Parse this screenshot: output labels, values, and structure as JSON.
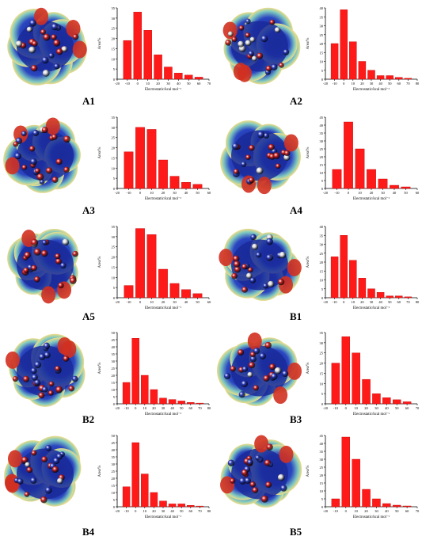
{
  "colors": {
    "bar": "#ff1a1a",
    "bar_edge": "#c00000",
    "axis": "#000000",
    "surface_blue": "#1a2a9a",
    "surface_red": "#d23020",
    "surface_yellow": "#e8dc8a",
    "atom_red": "#c81e1e",
    "atom_blue": "#2a3ab8",
    "atom_white": "#dcdcdc"
  },
  "panels": [
    {
      "label": "A1"
    },
    {
      "label": "A2"
    },
    {
      "label": "A3"
    },
    {
      "label": "A4"
    },
    {
      "label": "A5"
    },
    {
      "label": "B1"
    },
    {
      "label": "B2"
    },
    {
      "label": "B3"
    },
    {
      "label": "B4"
    },
    {
      "label": "B5"
    }
  ],
  "chart_data": [
    {
      "panel": "A1",
      "type": "bar",
      "xlabel": "Electrostatic/kcal mol⁻¹",
      "ylabel": "Area/%",
      "x": [
        -10,
        0,
        10,
        20,
        30,
        40,
        50,
        60
      ],
      "values": [
        19,
        33,
        24,
        12,
        6,
        3,
        2,
        1
      ],
      "xlim": [
        -20,
        70
      ],
      "ylim": [
        0,
        35
      ],
      "xticks": [
        -20,
        -10,
        0,
        10,
        20,
        30,
        40,
        50,
        60,
        70
      ],
      "yticks": [
        0,
        5,
        10,
        15,
        20,
        25,
        30,
        35
      ]
    },
    {
      "panel": "A2",
      "type": "bar",
      "xlabel": "Electrostatic/kcal mol⁻¹",
      "ylabel": "Area/%",
      "x": [
        -10,
        0,
        10,
        20,
        30,
        40,
        50,
        60,
        70
      ],
      "values": [
        20,
        39,
        21,
        10,
        5,
        2,
        2,
        1,
        0.5
      ],
      "xlim": [
        -20,
        80
      ],
      "ylim": [
        0,
        40
      ],
      "xticks": [
        -20,
        -10,
        0,
        10,
        20,
        30,
        40,
        50,
        60,
        70,
        80
      ],
      "yticks": [
        0,
        5,
        10,
        15,
        20,
        25,
        30,
        35,
        40
      ]
    },
    {
      "panel": "A3",
      "type": "bar",
      "xlabel": "Electrostatic/kcal mol⁻¹",
      "ylabel": "Area/%",
      "x": [
        -10,
        0,
        10,
        20,
        30,
        40,
        50
      ],
      "values": [
        18,
        30,
        29,
        14,
        6,
        3,
        2
      ],
      "xlim": [
        -20,
        60
      ],
      "ylim": [
        0,
        35
      ],
      "xticks": [
        -20,
        -10,
        0,
        10,
        20,
        30,
        40,
        50,
        60
      ],
      "yticks": [
        0,
        5,
        10,
        15,
        20,
        25,
        30,
        35
      ]
    },
    {
      "panel": "A4",
      "type": "bar",
      "xlabel": "Electrostatic/kcal mol⁻¹",
      "ylabel": "Area/%",
      "x": [
        -10,
        0,
        10,
        20,
        30,
        40,
        50
      ],
      "values": [
        12,
        42,
        25,
        12,
        6,
        2,
        1
      ],
      "xlim": [
        -20,
        60
      ],
      "ylim": [
        0,
        45
      ],
      "xticks": [
        -20,
        -10,
        0,
        10,
        20,
        30,
        40,
        50,
        60
      ],
      "yticks": [
        0,
        5,
        10,
        15,
        20,
        25,
        30,
        35,
        40,
        45
      ]
    },
    {
      "panel": "A5",
      "type": "bar",
      "xlabel": "Electrostatic/kcal mol⁻¹",
      "ylabel": "Area/%",
      "x": [
        -10,
        0,
        10,
        20,
        30,
        40,
        50
      ],
      "values": [
        6,
        34,
        31,
        14,
        7,
        4,
        2
      ],
      "xlim": [
        -20,
        60
      ],
      "ylim": [
        0,
        35
      ],
      "xticks": [
        -20,
        -10,
        0,
        10,
        20,
        30,
        40,
        50,
        60
      ],
      "yticks": [
        0,
        5,
        10,
        15,
        20,
        25,
        30,
        35
      ]
    },
    {
      "panel": "B1",
      "type": "bar",
      "xlabel": "Electrostatic/kcal mol⁻¹",
      "ylabel": "Area/%",
      "x": [
        -10,
        0,
        10,
        20,
        30,
        40,
        50,
        60,
        70
      ],
      "values": [
        23,
        35,
        21,
        11,
        5,
        3,
        1,
        1,
        0.5
      ],
      "xlim": [
        -20,
        80
      ],
      "ylim": [
        0,
        40
      ],
      "xticks": [
        -20,
        -10,
        0,
        10,
        20,
        30,
        40,
        50,
        60,
        70,
        80
      ],
      "yticks": [
        0,
        5,
        10,
        15,
        20,
        25,
        30,
        35,
        40
      ]
    },
    {
      "panel": "B2",
      "type": "bar",
      "xlabel": "Electrostatic/kcal mol⁻¹",
      "ylabel": "Area/%",
      "x": [
        -10,
        0,
        10,
        20,
        30,
        40,
        50,
        60,
        70
      ],
      "values": [
        15,
        46,
        20,
        10,
        4,
        3,
        2,
        1,
        0.5
      ],
      "xlim": [
        -20,
        80
      ],
      "ylim": [
        0,
        50
      ],
      "xticks": [
        -20,
        -10,
        0,
        10,
        20,
        30,
        40,
        50,
        60,
        70,
        80
      ],
      "yticks": [
        0,
        5,
        10,
        15,
        20,
        25,
        30,
        35,
        40,
        45,
        50
      ]
    },
    {
      "panel": "B3",
      "type": "bar",
      "xlabel": "Electrostatic/kcal mol⁻¹",
      "ylabel": "Area/%",
      "x": [
        -10,
        0,
        10,
        20,
        30,
        40,
        50,
        60
      ],
      "values": [
        20,
        33,
        25,
        12,
        5,
        3,
        2,
        1
      ],
      "xlim": [
        -20,
        70
      ],
      "ylim": [
        0,
        35
      ],
      "xticks": [
        -20,
        -10,
        0,
        10,
        20,
        30,
        40,
        50,
        60,
        70
      ],
      "yticks": [
        0,
        5,
        10,
        15,
        20,
        25,
        30,
        35
      ]
    },
    {
      "panel": "B4",
      "type": "bar",
      "xlabel": "Electrostatic/kcal mol⁻¹",
      "ylabel": "Area/%",
      "x": [
        -10,
        0,
        10,
        20,
        30,
        40,
        50,
        60,
        70
      ],
      "values": [
        14,
        45,
        23,
        10,
        4,
        2,
        2,
        1,
        0.5
      ],
      "xlim": [
        -20,
        80
      ],
      "ylim": [
        0,
        50
      ],
      "xticks": [
        -20,
        -10,
        0,
        10,
        20,
        30,
        40,
        50,
        60,
        70,
        80
      ],
      "yticks": [
        0,
        5,
        10,
        15,
        20,
        25,
        30,
        35,
        40,
        45,
        50
      ]
    },
    {
      "panel": "B5",
      "type": "bar",
      "xlabel": "Electrostatic/kcal mol⁻¹",
      "ylabel": "Area/%",
      "x": [
        -10,
        0,
        10,
        20,
        30,
        40,
        50,
        60
      ],
      "values": [
        5,
        44,
        30,
        11,
        5,
        2,
        1,
        0.5
      ],
      "xlim": [
        -20,
        70
      ],
      "ylim": [
        0,
        45
      ],
      "xticks": [
        -20,
        -10,
        0,
        10,
        20,
        30,
        40,
        50,
        60,
        70
      ],
      "yticks": [
        0,
        5,
        10,
        15,
        20,
        25,
        30,
        35,
        40,
        45
      ]
    }
  ]
}
